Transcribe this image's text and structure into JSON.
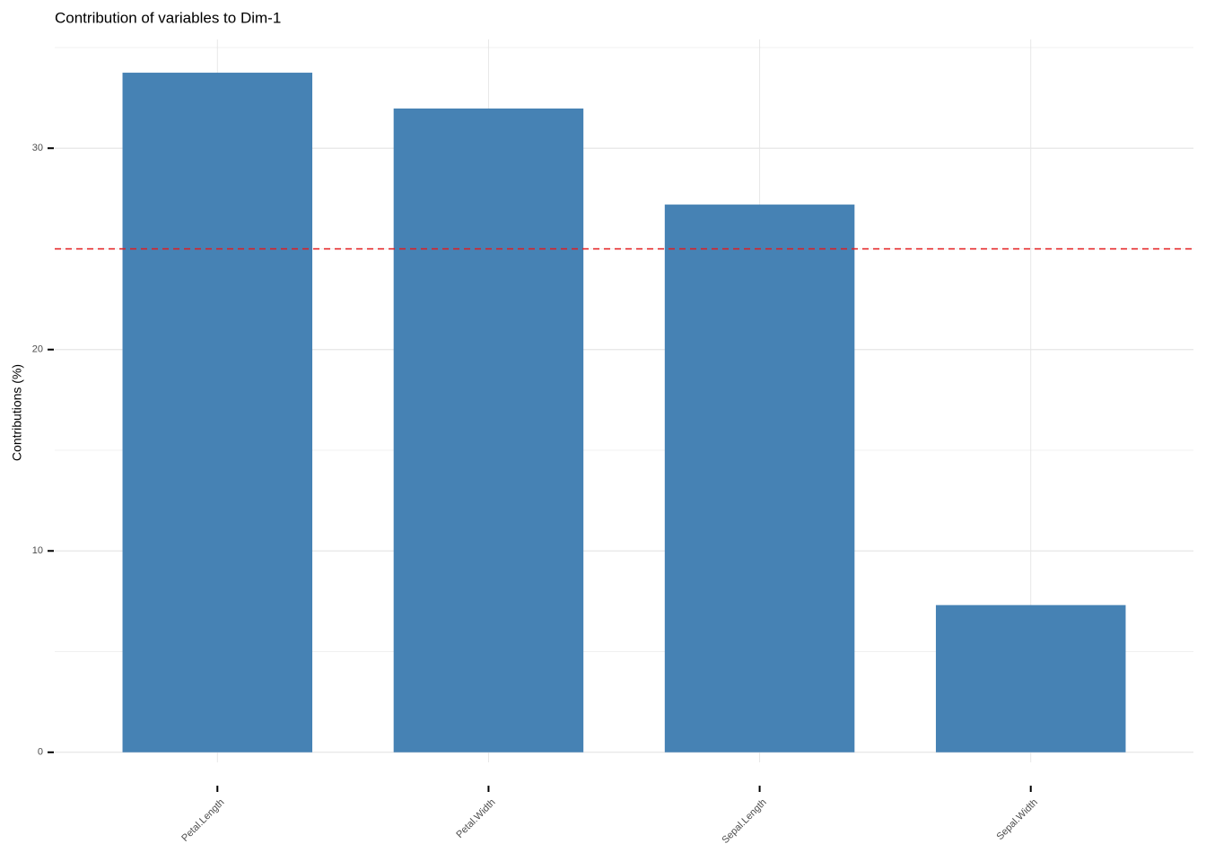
{
  "chart_data": {
    "type": "bar",
    "title": "Contribution of variables to Dim-1",
    "y_label": "Contributions (%)",
    "categories": [
      "Petal.Length",
      "Petal.Width",
      "Sepal.Length",
      "Sepal.Width"
    ],
    "values": [
      33.75,
      31.97,
      27.2,
      7.31
    ],
    "color": "#4682b4",
    "ylim": [
      -0.5,
      35.4
    ],
    "yticks": [
      0,
      10,
      20,
      30
    ],
    "minor_yticks": [
      5,
      15,
      25,
      35
    ],
    "grid": true,
    "reference_line": {
      "value": 25,
      "color": "#e41a1c"
    }
  }
}
